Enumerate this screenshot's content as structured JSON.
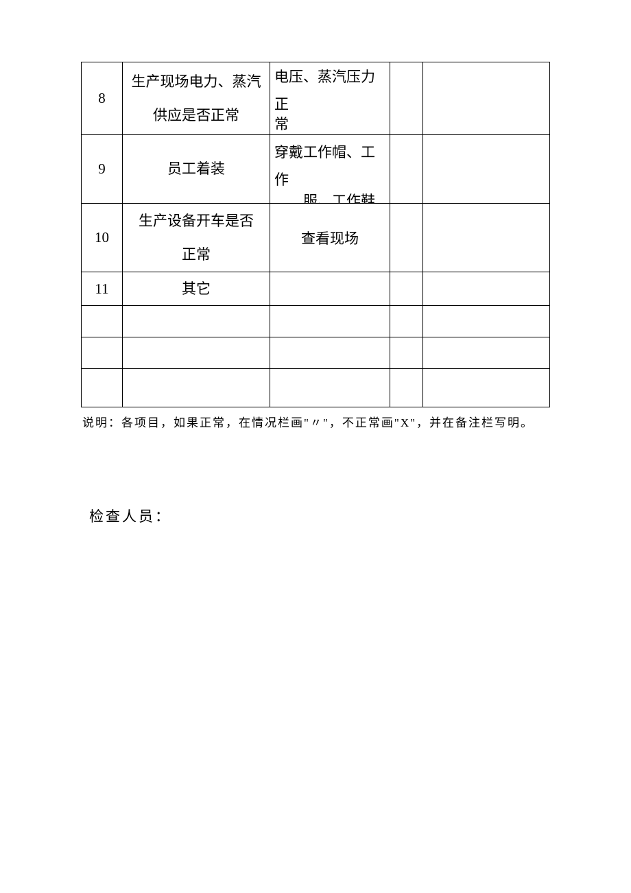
{
  "table": {
    "rows": [
      {
        "num": "8",
        "item_line1": "生产现场电力、蒸汽",
        "item_line2": "供应是否正常",
        "standard_line1": "电压、蒸汽压力",
        "standard_line2": "正",
        "standard_line3": "常"
      },
      {
        "num": "9",
        "item_line1": "员工着装",
        "item_line2": "",
        "standard_line1": "穿戴工作帽、工",
        "standard_line2": "作",
        "standard_line3": "服、工作鞋"
      },
      {
        "num": "10",
        "item_line1": "生产设备开车是否",
        "item_line2": "正常",
        "standard_line1": "查看现场"
      },
      {
        "num": "11",
        "item_line1": "其它",
        "item_line2": "",
        "standard_line1": ""
      }
    ]
  },
  "note_text": "说明：各项目，如果正常，在情况栏画\"〃\"，不正常画\"X\"，并在备注栏写明。",
  "inspector_label": "检查人员："
}
